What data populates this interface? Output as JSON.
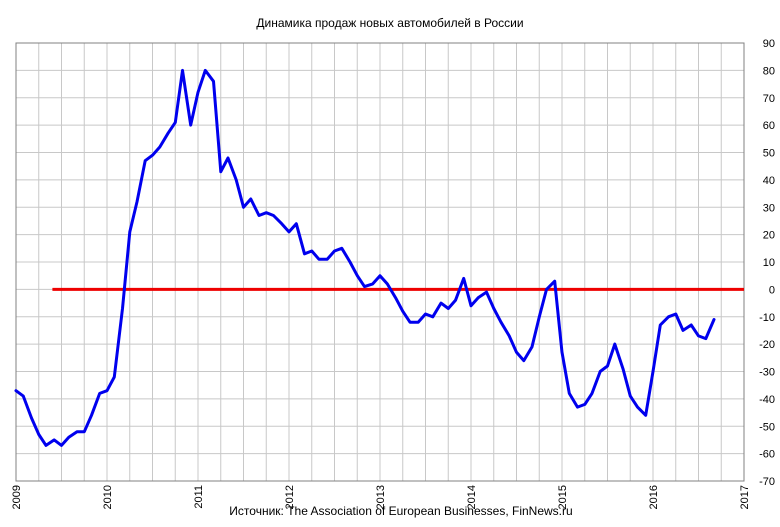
{
  "chart_data": {
    "type": "line",
    "title": "Динамика продаж новых автомобилей в России",
    "source": "Источник: The Association of European Businesses, FinNews.ru",
    "xlim": [
      2009,
      2017
    ],
    "ylim": [
      -70,
      90
    ],
    "x_ticks": [
      "2009",
      "2010",
      "2011",
      "2012",
      "2013",
      "2014",
      "2015",
      "2016",
      "2017"
    ],
    "y_ticks": [
      "90",
      "80",
      "70",
      "60",
      "50",
      "40",
      "30",
      "20",
      "10",
      "0",
      "-10",
      "-20",
      "-30",
      "-40",
      "-50",
      "-60",
      "-70"
    ],
    "grid": true,
    "colors": {
      "series": "#0000ee",
      "reference": "#ee0000",
      "grid": "#c8c8c8"
    },
    "series": [
      {
        "x": [
          2009.0,
          2009.08,
          2009.17,
          2009.25,
          2009.33,
          2009.42,
          2009.5,
          2009.58,
          2009.67,
          2009.75,
          2009.83,
          2009.92,
          2010.0,
          2010.08,
          2010.17,
          2010.25,
          2010.33,
          2010.42,
          2010.5,
          2010.58,
          2010.67,
          2010.75,
          2010.83,
          2010.92,
          2011.0,
          2011.08,
          2011.17,
          2011.25,
          2011.33,
          2011.42,
          2011.5,
          2011.58,
          2011.67,
          2011.75,
          2011.83,
          2011.92,
          2012.0,
          2012.08,
          2012.17,
          2012.25,
          2012.33,
          2012.42,
          2012.5,
          2012.58,
          2012.67,
          2012.75,
          2012.83,
          2012.92,
          2013.0,
          2013.08,
          2013.17,
          2013.25,
          2013.33,
          2013.42,
          2013.5,
          2013.58,
          2013.67,
          2013.75,
          2013.83,
          2013.92,
          2014.0,
          2014.08,
          2014.17,
          2014.25,
          2014.33,
          2014.42,
          2014.5,
          2014.58,
          2014.67,
          2014.75,
          2014.83,
          2014.92,
          2015.0,
          2015.08,
          2015.17,
          2015.25,
          2015.33,
          2015.42,
          2015.5,
          2015.58,
          2015.67,
          2015.75,
          2015.83,
          2015.92,
          2016.0,
          2016.08,
          2016.17,
          2016.25,
          2016.33,
          2016.42,
          2016.5,
          2016.58,
          2016.67
        ],
        "y": [
          -37,
          -39,
          -47,
          -53,
          -57,
          -55,
          -57,
          -54,
          -52,
          -52,
          -46,
          -38,
          -37,
          -32,
          -7,
          21,
          32,
          47,
          49,
          52,
          57,
          61,
          80,
          60,
          72,
          80,
          76,
          43,
          48,
          40,
          30,
          33,
          27,
          28,
          27,
          24,
          21,
          24,
          13,
          14,
          11,
          11,
          14,
          15,
          10,
          5,
          1,
          2,
          5,
          2,
          -3,
          -8,
          -12,
          -12,
          -9,
          -10,
          -5,
          -7,
          -4,
          4,
          -6,
          -3,
          -1,
          -7,
          -12,
          -17,
          -23,
          -26,
          -21,
          -10,
          0,
          3,
          -23,
          -38,
          -43,
          -42,
          -38,
          -30,
          -28,
          -20,
          -29,
          -39,
          -43,
          -46,
          -30,
          -13,
          -10,
          -9,
          -15,
          -13,
          -17,
          -18,
          -11
        ]
      }
    ],
    "reference_line": {
      "y": 0,
      "x": [
        2009.4,
        2017.0
      ]
    }
  }
}
